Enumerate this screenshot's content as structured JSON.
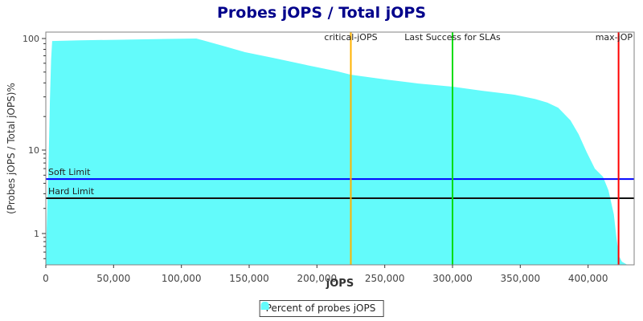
{
  "title": "Probes jOPS / Total jOPS",
  "chart_data": {
    "type": "area",
    "title": "Probes jOPS / Total jOPS",
    "title_color": "#00008B",
    "xlabel": "jOPS",
    "ylabel": "(Probes jOPS / Total jOPS)%",
    "x_axis": {
      "min": 0,
      "max": 434000,
      "ticks": [
        {
          "v": 0,
          "label": "0"
        },
        {
          "v": 50000,
          "label": "50,000"
        },
        {
          "v": 100000,
          "label": "100,000"
        },
        {
          "v": 150000,
          "label": "150,000"
        },
        {
          "v": 200000,
          "label": "200,000"
        },
        {
          "v": 250000,
          "label": "250,000"
        },
        {
          "v": 300000,
          "label": "300,000"
        },
        {
          "v": 350000,
          "label": "350,000"
        },
        {
          "v": 400000,
          "label": "400,000"
        }
      ]
    },
    "y_axis": {
      "scale": "log",
      "ticks": [
        {
          "v": 100,
          "label": "100"
        },
        {
          "v": 10,
          "label": "10"
        },
        {
          "v": 1,
          "label": "1"
        }
      ]
    },
    "series": [
      {
        "name": "Percent of probes jOPS",
        "color": "#63FBFB",
        "points": [
          [
            0,
            0.42
          ],
          [
            600,
            1.1
          ],
          [
            1400,
            3.2
          ],
          [
            2200,
            9
          ],
          [
            3000,
            28
          ],
          [
            3900,
            65
          ],
          [
            4700,
            95
          ],
          [
            25000,
            96.5
          ],
          [
            55000,
            97.5
          ],
          [
            85000,
            99
          ],
          [
            111000,
            100
          ],
          [
            120000,
            93.5
          ],
          [
            132000,
            85
          ],
          [
            147000,
            75.5
          ],
          [
            168000,
            67
          ],
          [
            192000,
            58
          ],
          [
            215000,
            50.8
          ],
          [
            225000,
            47.4
          ],
          [
            251000,
            42.9
          ],
          [
            275000,
            39.5
          ],
          [
            300000,
            37
          ],
          [
            322000,
            34
          ],
          [
            346000,
            31.3
          ],
          [
            361000,
            28.7
          ],
          [
            370000,
            26.6
          ],
          [
            378000,
            24
          ],
          [
            387000,
            18.5
          ],
          [
            393000,
            13.9
          ],
          [
            399000,
            9.4
          ],
          [
            405000,
            6.0
          ],
          [
            411000,
            4.8
          ],
          [
            415000,
            3.3
          ],
          [
            419000,
            1.7
          ],
          [
            421000,
            0.87
          ],
          [
            423000,
            0.53
          ],
          [
            425000,
            0.46
          ],
          [
            429000,
            0.42
          ]
        ]
      }
    ],
    "v_markers": [
      {
        "label": "critical-jOPS",
        "x": 225000,
        "color": "#FFB300",
        "align": "center"
      },
      {
        "label": "Last Success for SLAs",
        "x": 300000,
        "color": "#00DD00",
        "align": "center"
      },
      {
        "label": "max-jOP",
        "x": 422500,
        "color": "#FF0000",
        "align": "end"
      }
    ],
    "h_markers": [
      {
        "label": "Soft Limit",
        "y": 4.5,
        "color": "#0000FF"
      },
      {
        "label": "Hard Limit",
        "y": 2.65,
        "color": "#111111"
      }
    ],
    "legend": {
      "position": "bottom",
      "items": [
        {
          "label": "Percent of probes jOPS",
          "color": "#63FBFB"
        }
      ]
    }
  }
}
